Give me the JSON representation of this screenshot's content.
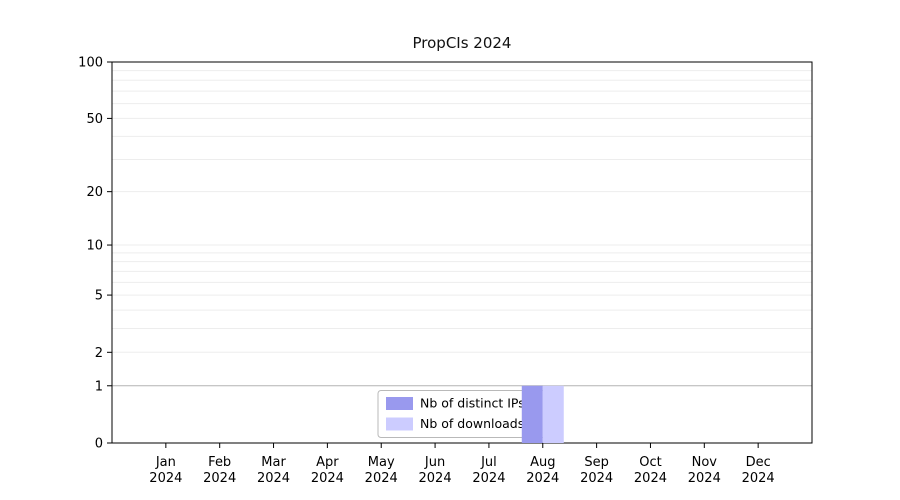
{
  "chart_data": {
    "type": "bar",
    "title": "PropCIs 2024",
    "categories": [
      "Jan",
      "Feb",
      "Mar",
      "Apr",
      "May",
      "Jun",
      "Jul",
      "Aug",
      "Sep",
      "Oct",
      "Nov",
      "Dec"
    ],
    "x_year_label": "2024",
    "series": [
      {
        "name": "Nb of distinct IPs",
        "color": "#9999ee",
        "values": [
          0,
          0,
          0,
          0,
          0,
          0,
          0,
          1,
          0,
          0,
          0,
          0
        ]
      },
      {
        "name": "Nb of downloads",
        "color": "#ccccff",
        "values": [
          0,
          0,
          0,
          0,
          0,
          0,
          0,
          1,
          0,
          0,
          0,
          0
        ]
      }
    ],
    "yticks": [
      0,
      1,
      2,
      5,
      10,
      20,
      50,
      100
    ],
    "gridlines": [
      1,
      2,
      3,
      4,
      5,
      6,
      7,
      8,
      9,
      10,
      20,
      30,
      40,
      50,
      60,
      70,
      80,
      90,
      100
    ],
    "ylim": [
      0,
      100
    ],
    "scale": "log10(1+x)",
    "grid": true,
    "legend_position": "bottom-center",
    "axis_color": "#000000",
    "gridline_color": "#ededed",
    "gridline_emphasis_value": 1,
    "gridline_emphasis_color": "#b4b4b4"
  }
}
